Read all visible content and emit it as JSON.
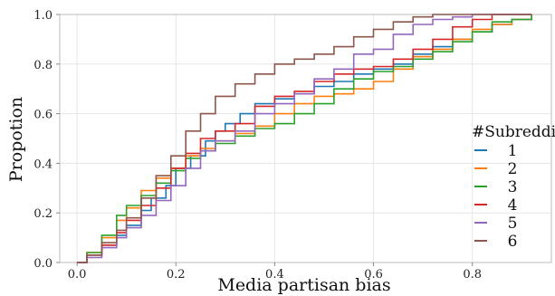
{
  "chart_data": {
    "type": "line",
    "step": true,
    "xlabel": "Media partisan bias",
    "ylabel": "Propotion",
    "xlim": [
      -0.035,
      0.96
    ],
    "ylim": [
      0,
      1
    ],
    "xticks": [
      {
        "value": 0.0,
        "label": "0.0"
      },
      {
        "value": 0.2,
        "label": "0.2"
      },
      {
        "value": 0.4,
        "label": "0.4"
      },
      {
        "value": 0.6,
        "label": "0.6"
      },
      {
        "value": 0.8,
        "label": "0.8"
      }
    ],
    "yticks": [
      {
        "value": 0.0,
        "label": "0.0"
      },
      {
        "value": 0.2,
        "label": "0.2"
      },
      {
        "value": 0.4,
        "label": "0.4"
      },
      {
        "value": 0.6,
        "label": "0.6"
      },
      {
        "value": 0.8,
        "label": "0.8"
      },
      {
        "value": 1.0,
        "label": "1.0"
      }
    ],
    "grid": true,
    "legend": {
      "title": "#Subreddit",
      "placement": "right"
    },
    "series": [
      {
        "name": "1",
        "color": "#1f77b4",
        "points": [
          [
            0.0,
            0.0
          ],
          [
            0.02,
            0.03
          ],
          [
            0.05,
            0.07
          ],
          [
            0.08,
            0.11
          ],
          [
            0.1,
            0.15
          ],
          [
            0.13,
            0.21
          ],
          [
            0.15,
            0.26
          ],
          [
            0.18,
            0.31
          ],
          [
            0.2,
            0.38
          ],
          [
            0.23,
            0.43
          ],
          [
            0.26,
            0.49
          ],
          [
            0.28,
            0.53
          ],
          [
            0.3,
            0.56
          ],
          [
            0.33,
            0.6
          ],
          [
            0.36,
            0.64
          ],
          [
            0.4,
            0.66
          ],
          [
            0.44,
            0.68
          ],
          [
            0.48,
            0.71
          ],
          [
            0.52,
            0.73
          ],
          [
            0.56,
            0.76
          ],
          [
            0.6,
            0.78
          ],
          [
            0.64,
            0.8
          ],
          [
            0.68,
            0.84
          ],
          [
            0.72,
            0.87
          ],
          [
            0.76,
            0.9
          ],
          [
            0.8,
            0.93
          ],
          [
            0.84,
            0.96
          ],
          [
            0.88,
            0.98
          ],
          [
            0.92,
            1.0
          ]
        ]
      },
      {
        "name": "2",
        "color": "#ff7f0e",
        "points": [
          [
            0.0,
            0.0
          ],
          [
            0.02,
            0.04
          ],
          [
            0.05,
            0.1
          ],
          [
            0.08,
            0.17
          ],
          [
            0.1,
            0.22
          ],
          [
            0.13,
            0.29
          ],
          [
            0.16,
            0.34
          ],
          [
            0.19,
            0.38
          ],
          [
            0.22,
            0.43
          ],
          [
            0.25,
            0.46
          ],
          [
            0.28,
            0.49
          ],
          [
            0.32,
            0.52
          ],
          [
            0.36,
            0.55
          ],
          [
            0.4,
            0.6
          ],
          [
            0.44,
            0.64
          ],
          [
            0.48,
            0.67
          ],
          [
            0.52,
            0.68
          ],
          [
            0.56,
            0.7
          ],
          [
            0.6,
            0.73
          ],
          [
            0.64,
            0.78
          ],
          [
            0.68,
            0.83
          ],
          [
            0.72,
            0.86
          ],
          [
            0.76,
            0.9
          ],
          [
            0.8,
            0.94
          ],
          [
            0.84,
            0.96
          ],
          [
            0.88,
            0.98
          ],
          [
            0.92,
            1.0
          ]
        ]
      },
      {
        "name": "3",
        "color": "#2ca02c",
        "points": [
          [
            0.0,
            0.0
          ],
          [
            0.02,
            0.04
          ],
          [
            0.05,
            0.11
          ],
          [
            0.08,
            0.19
          ],
          [
            0.1,
            0.23
          ],
          [
            0.13,
            0.27
          ],
          [
            0.16,
            0.32
          ],
          [
            0.19,
            0.37
          ],
          [
            0.22,
            0.42
          ],
          [
            0.25,
            0.45
          ],
          [
            0.28,
            0.48
          ],
          [
            0.32,
            0.51
          ],
          [
            0.36,
            0.54
          ],
          [
            0.4,
            0.56
          ],
          [
            0.44,
            0.6
          ],
          [
            0.48,
            0.64
          ],
          [
            0.52,
            0.7
          ],
          [
            0.56,
            0.74
          ],
          [
            0.6,
            0.77
          ],
          [
            0.64,
            0.79
          ],
          [
            0.68,
            0.82
          ],
          [
            0.72,
            0.85
          ],
          [
            0.76,
            0.89
          ],
          [
            0.8,
            0.93
          ],
          [
            0.84,
            0.97
          ],
          [
            0.88,
            0.98
          ],
          [
            0.92,
            1.0
          ]
        ]
      },
      {
        "name": "4",
        "color": "#d62728",
        "points": [
          [
            0.0,
            0.0
          ],
          [
            0.02,
            0.03
          ],
          [
            0.05,
            0.07
          ],
          [
            0.08,
            0.12
          ],
          [
            0.1,
            0.17
          ],
          [
            0.13,
            0.23
          ],
          [
            0.16,
            0.3
          ],
          [
            0.19,
            0.38
          ],
          [
            0.22,
            0.44
          ],
          [
            0.25,
            0.5
          ],
          [
            0.28,
            0.53
          ],
          [
            0.32,
            0.56
          ],
          [
            0.36,
            0.63
          ],
          [
            0.4,
            0.67
          ],
          [
            0.44,
            0.69
          ],
          [
            0.48,
            0.73
          ],
          [
            0.52,
            0.76
          ],
          [
            0.56,
            0.78
          ],
          [
            0.6,
            0.79
          ],
          [
            0.64,
            0.82
          ],
          [
            0.68,
            0.86
          ],
          [
            0.72,
            0.9
          ],
          [
            0.76,
            0.95
          ],
          [
            0.8,
            0.98
          ],
          [
            0.84,
            1.0
          ],
          [
            0.92,
            1.0
          ]
        ]
      },
      {
        "name": "5",
        "color": "#9467bd",
        "points": [
          [
            0.0,
            0.0
          ],
          [
            0.02,
            0.02
          ],
          [
            0.05,
            0.06
          ],
          [
            0.08,
            0.1
          ],
          [
            0.1,
            0.14
          ],
          [
            0.13,
            0.19
          ],
          [
            0.16,
            0.25
          ],
          [
            0.19,
            0.31
          ],
          [
            0.22,
            0.38
          ],
          [
            0.25,
            0.45
          ],
          [
            0.28,
            0.49
          ],
          [
            0.32,
            0.53
          ],
          [
            0.36,
            0.6
          ],
          [
            0.4,
            0.64
          ],
          [
            0.44,
            0.68
          ],
          [
            0.48,
            0.74
          ],
          [
            0.52,
            0.78
          ],
          [
            0.56,
            0.84
          ],
          [
            0.6,
            0.86
          ],
          [
            0.64,
            0.92
          ],
          [
            0.68,
            0.96
          ],
          [
            0.72,
            0.98
          ],
          [
            0.76,
            0.99
          ],
          [
            0.8,
            1.0
          ],
          [
            0.92,
            1.0
          ]
        ]
      },
      {
        "name": "6",
        "color": "#8c564b",
        "points": [
          [
            0.0,
            0.0
          ],
          [
            0.02,
            0.03
          ],
          [
            0.05,
            0.08
          ],
          [
            0.08,
            0.13
          ],
          [
            0.1,
            0.18
          ],
          [
            0.13,
            0.26
          ],
          [
            0.16,
            0.35
          ],
          [
            0.19,
            0.43
          ],
          [
            0.22,
            0.53
          ],
          [
            0.25,
            0.6
          ],
          [
            0.28,
            0.67
          ],
          [
            0.32,
            0.72
          ],
          [
            0.36,
            0.76
          ],
          [
            0.4,
            0.8
          ],
          [
            0.44,
            0.82
          ],
          [
            0.48,
            0.84
          ],
          [
            0.52,
            0.87
          ],
          [
            0.56,
            0.91
          ],
          [
            0.6,
            0.94
          ],
          [
            0.64,
            0.97
          ],
          [
            0.68,
            0.99
          ],
          [
            0.72,
            1.0
          ],
          [
            0.92,
            1.0
          ]
        ]
      }
    ]
  }
}
